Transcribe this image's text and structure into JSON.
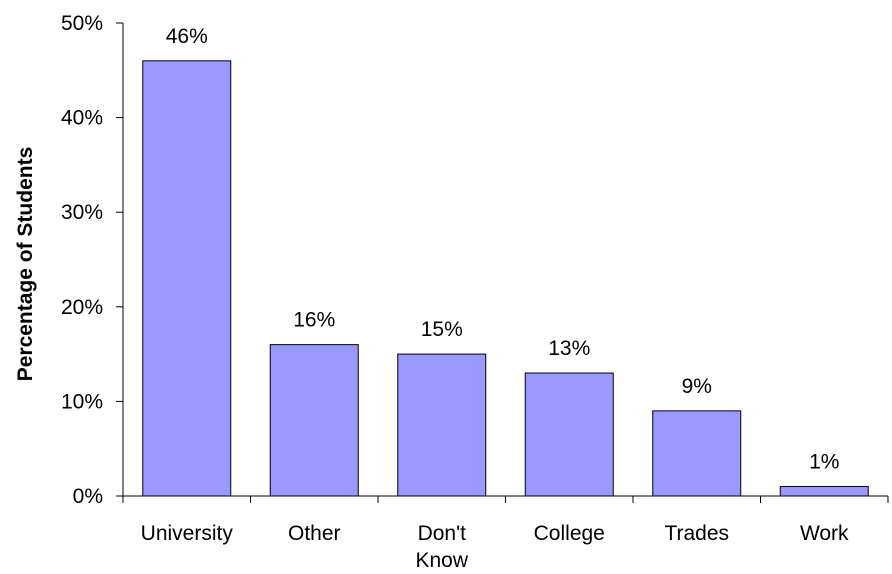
{
  "chart_data": {
    "type": "bar",
    "title": "",
    "xlabel": "",
    "ylabel": "Percentage of Students",
    "categories": [
      [
        "University"
      ],
      [
        "Other"
      ],
      [
        "Don't",
        "Know"
      ],
      [
        "College"
      ],
      [
        "Trades"
      ],
      [
        "Work"
      ]
    ],
    "values": [
      46,
      16,
      15,
      13,
      9,
      1
    ],
    "data_labels": [
      "46%",
      "16%",
      "15%",
      "13%",
      "9%",
      "1%"
    ],
    "ylim": [
      0,
      50
    ],
    "yticks": [
      0,
      10,
      20,
      30,
      40,
      50
    ],
    "ytick_labels": [
      "0%",
      "10%",
      "20%",
      "30%",
      "40%",
      "50%"
    ],
    "grid": false,
    "legend": "none",
    "bar_color": "#9999ff",
    "bar_edge_color": "#000000"
  }
}
